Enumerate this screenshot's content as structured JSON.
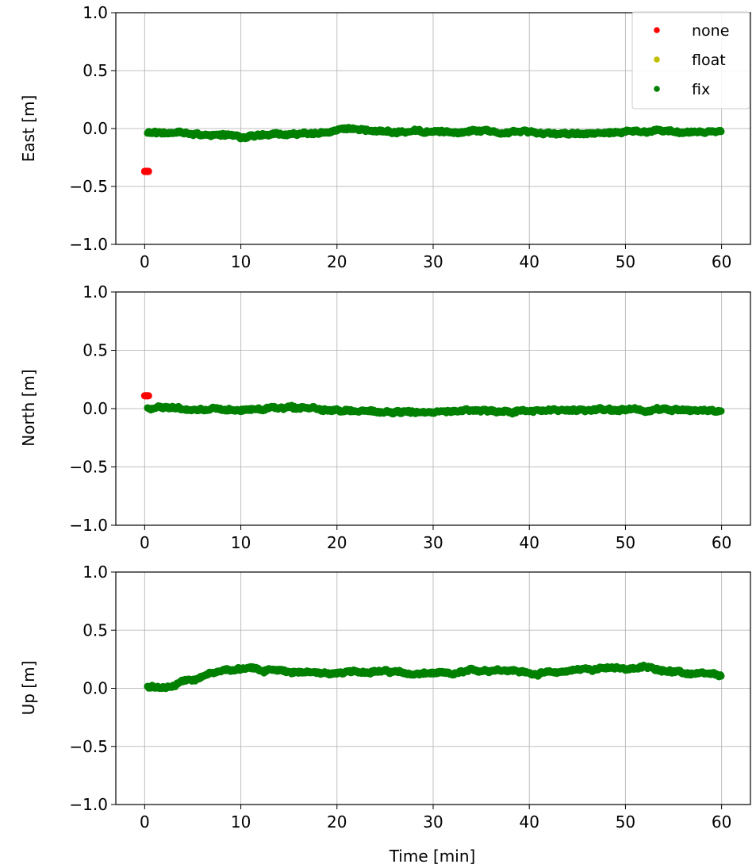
{
  "figure": {
    "xlabel": "Time [min]",
    "legend": {
      "placement": "upper-right-of-top-panel",
      "entries": [
        {
          "label": "none",
          "color": "#ff0000"
        },
        {
          "label": "float",
          "color": "#bfbf00"
        },
        {
          "label": "fix",
          "color": "#008000"
        }
      ]
    }
  },
  "chart_data": [
    {
      "type": "scatter",
      "ylabel": "East [m]",
      "xlim": [
        -3,
        63
      ],
      "ylim": [
        -1.0,
        1.0
      ],
      "xticks": [
        0,
        10,
        20,
        30,
        40,
        50,
        60
      ],
      "xtick_labels": [
        "0",
        "10",
        "20",
        "30",
        "40",
        "50",
        "60"
      ],
      "yticks": [
        1.0,
        0.5,
        0.0,
        -0.5,
        -1.0
      ],
      "ytick_labels": [
        "1.0",
        "0.5",
        "0.0",
        "−0.5",
        "−1.0"
      ],
      "grid": true,
      "series": [
        {
          "name": "none",
          "color": "#ff0000",
          "x": [
            0.0,
            0.1,
            0.2,
            0.3,
            0.4
          ],
          "y": [
            -0.37,
            -0.37,
            -0.37,
            -0.37,
            -0.37
          ]
        },
        {
          "name": "fix",
          "color": "#008000",
          "x": [
            0.3,
            2,
            4,
            6,
            8,
            10,
            12,
            14,
            16,
            18,
            20,
            22,
            24,
            26,
            28,
            30,
            32,
            34,
            36,
            38,
            40,
            42,
            44,
            46,
            48,
            50,
            52,
            54,
            56,
            58,
            60
          ],
          "y": [
            -0.04,
            -0.04,
            -0.03,
            -0.05,
            -0.06,
            -0.07,
            -0.06,
            -0.05,
            -0.05,
            -0.04,
            -0.02,
            -0.01,
            -0.02,
            -0.03,
            -0.03,
            -0.03,
            -0.03,
            -0.02,
            -0.02,
            -0.03,
            -0.03,
            -0.04,
            -0.04,
            -0.05,
            -0.04,
            -0.03,
            -0.03,
            -0.02,
            -0.03,
            -0.03,
            -0.03
          ]
        }
      ]
    },
    {
      "type": "scatter",
      "ylabel": "North [m]",
      "xlim": [
        -3,
        63
      ],
      "ylim": [
        -1.0,
        1.0
      ],
      "xticks": [
        0,
        10,
        20,
        30,
        40,
        50,
        60
      ],
      "xtick_labels": [
        "0",
        "10",
        "20",
        "30",
        "40",
        "50",
        "60"
      ],
      "yticks": [
        1.0,
        0.5,
        0.0,
        -0.5,
        -1.0
      ],
      "ytick_labels": [
        "1.0",
        "0.5",
        "0.0",
        "−0.5",
        "−1.0"
      ],
      "grid": true,
      "series": [
        {
          "name": "none",
          "color": "#ff0000",
          "x": [
            0.0,
            0.1,
            0.2,
            0.3,
            0.4
          ],
          "y": [
            0.11,
            0.11,
            0.11,
            0.11,
            0.11
          ]
        },
        {
          "name": "fix",
          "color": "#008000",
          "x": [
            0.3,
            2,
            4,
            6,
            8,
            10,
            12,
            14,
            16,
            18,
            20,
            22,
            24,
            26,
            28,
            30,
            32,
            34,
            36,
            38,
            40,
            42,
            44,
            46,
            48,
            50,
            52,
            54,
            56,
            58,
            60
          ],
          "y": [
            0.0,
            0.01,
            0.0,
            -0.01,
            -0.01,
            -0.01,
            0.0,
            0.01,
            0.01,
            0.0,
            -0.01,
            -0.02,
            -0.03,
            -0.03,
            -0.03,
            -0.03,
            -0.02,
            -0.02,
            -0.02,
            -0.02,
            -0.02,
            -0.02,
            -0.01,
            -0.01,
            -0.01,
            -0.01,
            -0.01,
            -0.01,
            -0.01,
            -0.01,
            -0.01
          ]
        }
      ]
    },
    {
      "type": "scatter",
      "ylabel": "Up [m]",
      "xlabel": "Time [min]",
      "xlim": [
        -3,
        63
      ],
      "ylim": [
        -1.0,
        1.0
      ],
      "xticks": [
        0,
        10,
        20,
        30,
        40,
        50,
        60
      ],
      "xtick_labels": [
        "0",
        "10",
        "20",
        "30",
        "40",
        "50",
        "60"
      ],
      "yticks": [
        1.0,
        0.5,
        0.0,
        -0.5,
        -1.0
      ],
      "ytick_labels": [
        "1.0",
        "0.5",
        "0.0",
        "−0.5",
        "−1.0"
      ],
      "grid": true,
      "series": [
        {
          "name": "fix",
          "color": "#008000",
          "x": [
            0.3,
            1,
            2,
            3,
            4,
            5,
            6,
            7,
            8,
            10,
            12,
            14,
            16,
            18,
            20,
            22,
            24,
            26,
            28,
            30,
            32,
            34,
            36,
            38,
            40,
            42,
            44,
            46,
            48,
            50,
            52,
            54,
            56,
            58,
            60
          ],
          "y": [
            0.02,
            0.01,
            0.01,
            0.03,
            0.06,
            0.07,
            0.11,
            0.13,
            0.15,
            0.17,
            0.16,
            0.16,
            0.14,
            0.13,
            0.13,
            0.14,
            0.15,
            0.14,
            0.12,
            0.13,
            0.12,
            0.15,
            0.16,
            0.16,
            0.13,
            0.13,
            0.15,
            0.17,
            0.17,
            0.17,
            0.18,
            0.16,
            0.13,
            0.12,
            0.11
          ]
        }
      ]
    }
  ]
}
